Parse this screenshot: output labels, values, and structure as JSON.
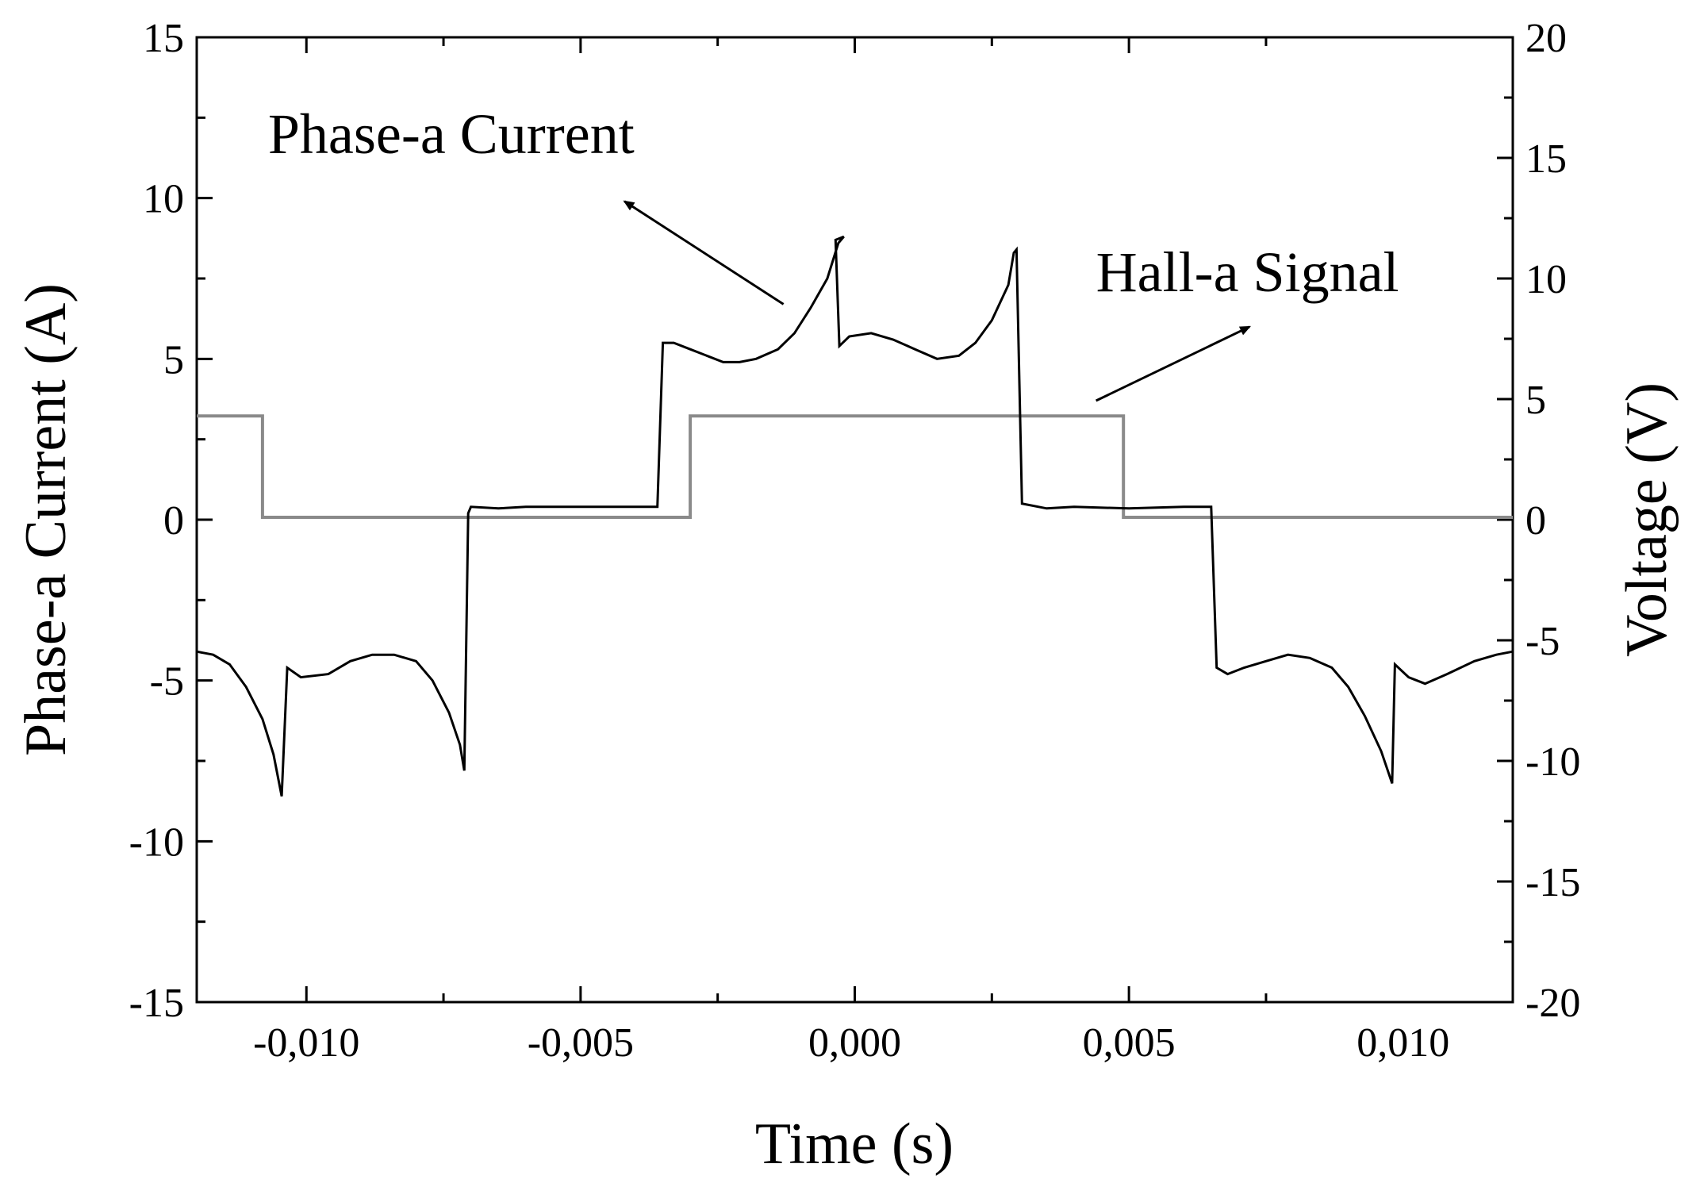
{
  "chart_data": {
    "type": "line",
    "title": "",
    "xlabel": "Time (s)",
    "ylabel_left": "Phase-a Current (A)",
    "ylabel_right": "Voltage (V)",
    "xlim": [
      -0.012,
      0.012
    ],
    "ylim_left": [
      -15,
      15
    ],
    "ylim_right": [
      -20,
      20
    ],
    "grid": false,
    "legend": "none",
    "x_ticks": [
      -0.01,
      -0.005,
      0.0,
      0.005,
      0.01
    ],
    "x_tick_labels": [
      "-0,010",
      "-0,005",
      "0,000",
      "0,005",
      "0,010"
    ],
    "y_left_ticks": [
      -15,
      -10,
      -5,
      0,
      5,
      10,
      15
    ],
    "y_left_tick_labels": [
      "-15",
      "-10",
      "-5",
      "0",
      "5",
      "10",
      "15"
    ],
    "y_right_ticks": [
      -20,
      -15,
      -10,
      -5,
      0,
      5,
      10,
      15,
      20
    ],
    "y_right_tick_labels": [
      "-20",
      "-15",
      "-10",
      "-5",
      "0",
      "5",
      "10",
      "15",
      "20"
    ],
    "series": [
      {
        "axis": "left",
        "color": "#000000",
        "points": [
          [
            -0.012,
            -4.1
          ],
          [
            -0.0117,
            -4.2
          ],
          [
            -0.0114,
            -4.5
          ],
          [
            -0.0111,
            -5.2
          ],
          [
            -0.0108,
            -6.2
          ],
          [
            -0.0106,
            -7.3
          ],
          [
            -0.01045,
            -8.6
          ],
          [
            -0.01035,
            -4.6
          ],
          [
            -0.0101,
            -4.9
          ],
          [
            -0.0096,
            -4.8
          ],
          [
            -0.0092,
            -4.4
          ],
          [
            -0.0088,
            -4.2
          ],
          [
            -0.0084,
            -4.2
          ],
          [
            -0.008,
            -4.4
          ],
          [
            -0.0077,
            -5.0
          ],
          [
            -0.0074,
            -6.0
          ],
          [
            -0.0072,
            -7.0
          ],
          [
            -0.00712,
            -7.8
          ],
          [
            -0.00705,
            0.2
          ],
          [
            -0.007,
            0.4
          ],
          [
            -0.0065,
            0.35
          ],
          [
            -0.006,
            0.4
          ],
          [
            -0.005,
            0.4
          ],
          [
            -0.004,
            0.4
          ],
          [
            -0.0036,
            0.4
          ],
          [
            -0.0035,
            5.5
          ],
          [
            -0.0033,
            5.5
          ],
          [
            -0.003,
            5.3
          ],
          [
            -0.0027,
            5.1
          ],
          [
            -0.0024,
            4.9
          ],
          [
            -0.0021,
            4.9
          ],
          [
            -0.0018,
            5.0
          ],
          [
            -0.0014,
            5.3
          ],
          [
            -0.0011,
            5.8
          ],
          [
            -0.0008,
            6.6
          ],
          [
            -0.0005,
            7.5
          ],
          [
            -0.0003,
            8.6
          ],
          [
            -0.0002,
            8.8
          ],
          [
            -0.00035,
            8.7
          ],
          [
            -0.00028,
            5.4
          ],
          [
            -0.0001,
            5.7
          ],
          [
            0.0003,
            5.8
          ],
          [
            0.0007,
            5.6
          ],
          [
            0.0011,
            5.3
          ],
          [
            0.0015,
            5.0
          ],
          [
            0.0019,
            5.1
          ],
          [
            0.0022,
            5.5
          ],
          [
            0.0025,
            6.2
          ],
          [
            0.0028,
            7.3
          ],
          [
            0.0029,
            8.3
          ],
          [
            0.00295,
            8.4
          ],
          [
            0.00305,
            0.5
          ],
          [
            0.0035,
            0.35
          ],
          [
            0.004,
            0.4
          ],
          [
            0.005,
            0.35
          ],
          [
            0.006,
            0.4
          ],
          [
            0.0065,
            0.4
          ],
          [
            0.0066,
            -4.6
          ],
          [
            0.0068,
            -4.8
          ],
          [
            0.0071,
            -4.6
          ],
          [
            0.0075,
            -4.4
          ],
          [
            0.0079,
            -4.2
          ],
          [
            0.0083,
            -4.3
          ],
          [
            0.0087,
            -4.6
          ],
          [
            0.009,
            -5.2
          ],
          [
            0.0093,
            -6.1
          ],
          [
            0.0096,
            -7.2
          ],
          [
            0.0098,
            -8.2
          ],
          [
            0.00985,
            -4.5
          ],
          [
            0.0101,
            -4.9
          ],
          [
            0.0104,
            -5.1
          ],
          [
            0.0108,
            -4.8
          ],
          [
            0.0113,
            -4.4
          ],
          [
            0.0117,
            -4.2
          ],
          [
            0.012,
            -4.1
          ]
        ]
      },
      {
        "axis": "right",
        "color": "#8a8a8a",
        "points": [
          [
            -0.012,
            4.3
          ],
          [
            -0.0108,
            4.3
          ],
          [
            -0.0108,
            0.1
          ],
          [
            -0.003,
            0.1
          ],
          [
            -0.003,
            4.3
          ],
          [
            0.0049,
            4.3
          ],
          [
            0.0049,
            0.1
          ],
          [
            0.012,
            0.1
          ]
        ]
      }
    ],
    "annotations": [
      {
        "text": "Phase-a Current",
        "x": -0.0107,
        "y": 11.4,
        "arrow_from": [
          -0.0013,
          6.7
        ],
        "arrow_to": [
          -0.0042,
          9.9
        ]
      },
      {
        "text": "Hall-a Signal",
        "x": 0.0044,
        "y": 7.1,
        "arrow_from": [
          0.0044,
          3.7
        ],
        "arrow_to": [
          0.0072,
          6.0
        ]
      }
    ]
  }
}
